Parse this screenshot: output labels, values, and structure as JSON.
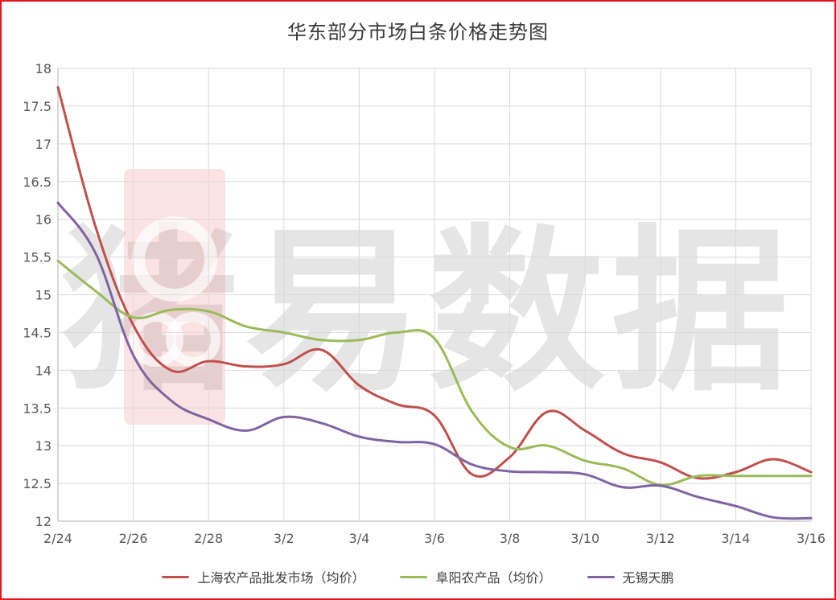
{
  "chart_data": {
    "type": "line",
    "title": "华东部分市场白条价格走势图",
    "watermark": "猪易数据",
    "xlabel": "",
    "ylabel": "",
    "ylim": [
      12,
      18
    ],
    "yticks": [
      "12",
      "12.5",
      "13",
      "13.5",
      "14",
      "14.5",
      "15",
      "15.5",
      "16",
      "16.5",
      "17",
      "17.5",
      "18"
    ],
    "categories": [
      "2/24",
      "2/25",
      "2/26",
      "2/27",
      "2/28",
      "3/1",
      "3/2",
      "3/3",
      "3/4",
      "3/5",
      "3/6",
      "3/7",
      "3/8",
      "3/9",
      "3/10",
      "3/11",
      "3/12",
      "3/13",
      "3/14",
      "3/15",
      "3/16"
    ],
    "xtick_labels": [
      "2/24",
      "2/26",
      "2/28",
      "3/2",
      "3/4",
      "3/6",
      "3/8",
      "3/10",
      "3/12",
      "3/14",
      "3/16"
    ],
    "grid": true,
    "legend_position": "bottom",
    "series": [
      {
        "name": "上海农产品批发市场（均价）",
        "color": "#c0504d",
        "values": [
          17.75,
          15.9,
          14.6,
          14.0,
          14.12,
          14.05,
          14.08,
          14.27,
          13.8,
          13.55,
          13.4,
          12.62,
          12.85,
          13.45,
          13.2,
          12.9,
          12.78,
          12.57,
          12.65,
          12.82,
          12.65
        ]
      },
      {
        "name": "阜阳农产品（均价）",
        "color": "#9bbb59",
        "values": [
          15.45,
          15.05,
          14.7,
          14.8,
          14.78,
          14.58,
          14.5,
          14.4,
          14.4,
          14.5,
          14.42,
          13.45,
          12.98,
          13.0,
          12.8,
          12.7,
          12.48,
          12.6,
          12.6,
          12.6,
          12.6
        ]
      },
      {
        "name": "无锡天鹏",
        "color": "#8064a2",
        "values": [
          16.22,
          15.55,
          14.2,
          13.6,
          13.35,
          13.2,
          13.38,
          13.3,
          13.12,
          13.05,
          13.02,
          12.75,
          12.66,
          12.65,
          12.62,
          12.45,
          12.47,
          12.32,
          12.2,
          12.05,
          12.04
        ]
      }
    ]
  }
}
